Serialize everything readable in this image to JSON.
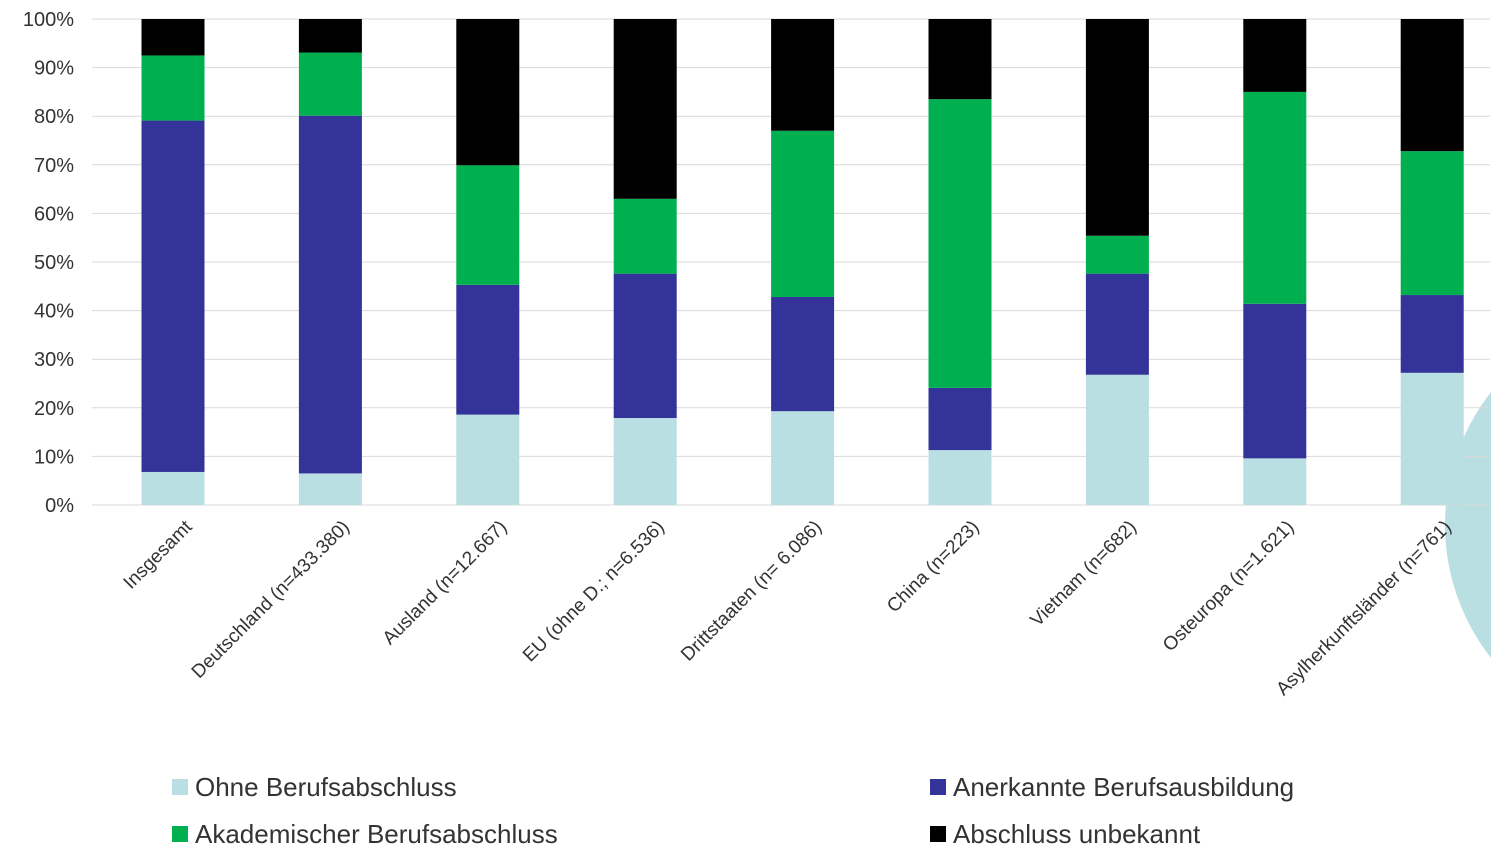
{
  "chart_data": {
    "type": "bar",
    "stacked": true,
    "categories": [
      "Insgesamt",
      "Deutschland (n=433.380)",
      "Ausland (n=12.667)",
      "EU (ohne D.; n=6.536)",
      "Drittstaaten (n= 6.086)",
      "China (n=223)",
      "Vietnam (n=682)",
      "Osteuropa (n=1.621)",
      "Asylherkunftsländer (n=761)"
    ],
    "series": [
      {
        "name": "Ohne Berufsabschluss",
        "color": "#b9dfe3",
        "values": [
          6.8,
          6.5,
          18.6,
          17.9,
          19.3,
          11.3,
          26.8,
          9.6,
          27.2
        ]
      },
      {
        "name": "Anerkannte Berufsausbildung",
        "color": "#333399",
        "values": [
          72.3,
          73.6,
          26.7,
          29.7,
          23.5,
          12.8,
          20.8,
          31.8,
          16.0
        ]
      },
      {
        "name": "Akademischer Berufsabschluss",
        "color": "#00b050",
        "values": [
          13.4,
          13.0,
          24.6,
          15.4,
          34.2,
          59.4,
          7.8,
          43.6,
          29.6
        ]
      },
      {
        "name": "Abschluss unbekannt",
        "color": "#000000",
        "values": [
          7.5,
          6.9,
          30.1,
          37.0,
          23.0,
          16.5,
          44.6,
          15.0,
          27.2
        ]
      }
    ],
    "y_ticks": [
      "0%",
      "10%",
      "20%",
      "30%",
      "40%",
      "50%",
      "60%",
      "70%",
      "80%",
      "90%",
      "100%"
    ],
    "ylim": [
      0,
      100
    ],
    "grid": true,
    "legend_position": "bottom",
    "title": "",
    "xlabel": "",
    "ylabel": ""
  },
  "decoration": {
    "circle_color": "#b9dfe3"
  }
}
